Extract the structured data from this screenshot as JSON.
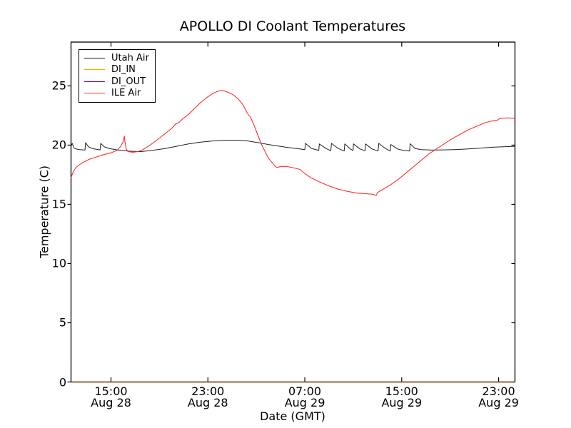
{
  "chart_data": {
    "type": "line",
    "title": "APOLLO DI Coolant Temperatures",
    "xlabel": "Date (GMT)",
    "ylabel": "Temperature (C)",
    "x_unit": "hours since Aug 28 00:00 GMT",
    "xlim": [
      11.7,
      48.35
    ],
    "ylim": [
      0,
      28.7
    ],
    "grid": false,
    "legend_position": "upper left",
    "axis_color": "#000000",
    "x_ticks": [
      {
        "hour": 15,
        "time": "15:00",
        "date": "Aug 28"
      },
      {
        "hour": 23,
        "time": "23:00",
        "date": "Aug 28"
      },
      {
        "hour": 31,
        "time": "07:00",
        "date": "Aug 29"
      },
      {
        "hour": 39,
        "time": "15:00",
        "date": "Aug 29"
      },
      {
        "hour": 47,
        "time": "23:00",
        "date": "Aug 29"
      }
    ],
    "y_ticks": [
      0,
      5,
      10,
      15,
      20,
      25
    ],
    "series": [
      {
        "name": "Utah Air",
        "color": "#1f1f1f",
        "width": 1,
        "points": [
          [
            11.7,
            19.9
          ],
          [
            11.8,
            20.15
          ],
          [
            11.95,
            19.75
          ],
          [
            12.1,
            19.68
          ],
          [
            12.4,
            19.62
          ],
          [
            12.85,
            19.58
          ],
          [
            12.9,
            20.2
          ],
          [
            13.15,
            19.85
          ],
          [
            13.5,
            19.7
          ],
          [
            14.1,
            19.6
          ],
          [
            14.15,
            20.15
          ],
          [
            14.45,
            19.85
          ],
          [
            14.9,
            19.7
          ],
          [
            15.5,
            19.6
          ],
          [
            16.4,
            19.5
          ],
          [
            17.4,
            19.45
          ],
          [
            18.4,
            19.55
          ],
          [
            19.4,
            19.7
          ],
          [
            20.4,
            19.9
          ],
          [
            21.4,
            20.1
          ],
          [
            22.4,
            20.25
          ],
          [
            23.4,
            20.35
          ],
          [
            24.4,
            20.42
          ],
          [
            25.4,
            20.42
          ],
          [
            26.3,
            20.35
          ],
          [
            27.2,
            20.2
          ],
          [
            28.0,
            20.05
          ],
          [
            28.8,
            19.92
          ],
          [
            29.6,
            19.8
          ],
          [
            30.4,
            19.7
          ],
          [
            31.0,
            19.62
          ],
          [
            31.05,
            20.15
          ],
          [
            31.55,
            19.72
          ],
          [
            32.15,
            19.55
          ],
          [
            32.2,
            20.1
          ],
          [
            32.75,
            19.72
          ],
          [
            33.15,
            19.52
          ],
          [
            33.2,
            20.15
          ],
          [
            33.75,
            19.72
          ],
          [
            34.25,
            19.5
          ],
          [
            34.3,
            20.1
          ],
          [
            34.75,
            19.68
          ],
          [
            34.98,
            19.55
          ],
          [
            35.02,
            20.1
          ],
          [
            35.55,
            19.68
          ],
          [
            35.98,
            19.52
          ],
          [
            36.02,
            20.1
          ],
          [
            36.55,
            19.68
          ],
          [
            37.05,
            19.5
          ],
          [
            37.1,
            20.15
          ],
          [
            37.65,
            19.72
          ],
          [
            38.05,
            19.5
          ],
          [
            38.1,
            20.05
          ],
          [
            38.65,
            19.68
          ],
          [
            39.15,
            19.55
          ],
          [
            39.65,
            19.5
          ],
          [
            39.7,
            20.12
          ],
          [
            40.1,
            19.72
          ],
          [
            40.6,
            19.62
          ],
          [
            41.5,
            19.58
          ],
          [
            42.5,
            19.6
          ],
          [
            43.5,
            19.63
          ],
          [
            44.5,
            19.68
          ],
          [
            45.5,
            19.75
          ],
          [
            46.5,
            19.82
          ],
          [
            47.4,
            19.86
          ],
          [
            48.35,
            19.9
          ]
        ]
      },
      {
        "name": "DI_IN",
        "color": "#ffa500",
        "width": 1.2,
        "points": [
          [
            11.7,
            0
          ],
          [
            48.35,
            0
          ]
        ]
      },
      {
        "name": "DI_OUT",
        "color": "#800080",
        "width": 1.2,
        "points": [
          [
            11.7,
            0
          ],
          [
            48.35,
            0
          ]
        ]
      },
      {
        "name": "ILE Air",
        "color": "#ff2f2f",
        "width": 1.1,
        "points": [
          [
            11.7,
            17.25
          ],
          [
            11.9,
            17.8
          ],
          [
            12.1,
            18.1
          ],
          [
            12.4,
            18.35
          ],
          [
            12.8,
            18.6
          ],
          [
            13.2,
            18.8
          ],
          [
            13.8,
            19.0
          ],
          [
            14.4,
            19.2
          ],
          [
            15.0,
            19.35
          ],
          [
            15.5,
            19.55
          ],
          [
            15.8,
            19.9
          ],
          [
            16.0,
            20.3
          ],
          [
            16.1,
            20.75
          ],
          [
            16.15,
            20.3
          ],
          [
            16.25,
            19.7
          ],
          [
            16.4,
            19.45
          ],
          [
            16.8,
            19.4
          ],
          [
            17.2,
            19.45
          ],
          [
            17.6,
            19.6
          ],
          [
            18.0,
            19.85
          ],
          [
            18.5,
            20.2
          ],
          [
            19.0,
            20.6
          ],
          [
            19.5,
            21.0
          ],
          [
            20.0,
            21.4
          ],
          [
            20.3,
            21.75
          ],
          [
            20.6,
            21.9
          ],
          [
            20.9,
            22.2
          ],
          [
            21.4,
            22.6
          ],
          [
            21.9,
            23.1
          ],
          [
            22.4,
            23.6
          ],
          [
            22.9,
            24.0
          ],
          [
            23.3,
            24.3
          ],
          [
            23.7,
            24.5
          ],
          [
            24.0,
            24.6
          ],
          [
            24.3,
            24.6
          ],
          [
            24.7,
            24.45
          ],
          [
            25.1,
            24.25
          ],
          [
            25.5,
            23.9
          ],
          [
            25.9,
            23.4
          ],
          [
            26.2,
            22.8
          ],
          [
            26.35,
            22.55
          ],
          [
            26.5,
            22.4
          ],
          [
            26.8,
            21.7
          ],
          [
            27.1,
            20.9
          ],
          [
            27.4,
            20.1
          ],
          [
            27.7,
            19.5
          ],
          [
            28.0,
            18.9
          ],
          [
            28.4,
            18.4
          ],
          [
            28.7,
            18.1
          ],
          [
            29.0,
            18.2
          ],
          [
            29.5,
            18.2
          ],
          [
            30.0,
            18.1
          ],
          [
            30.6,
            17.95
          ],
          [
            31.0,
            17.6
          ],
          [
            31.5,
            17.25
          ],
          [
            32.2,
            16.9
          ],
          [
            33.0,
            16.55
          ],
          [
            33.7,
            16.3
          ],
          [
            34.5,
            16.1
          ],
          [
            35.3,
            15.95
          ],
          [
            36.0,
            15.9
          ],
          [
            36.6,
            15.85
          ],
          [
            36.9,
            15.75
          ],
          [
            37.0,
            16.0
          ],
          [
            37.5,
            16.3
          ],
          [
            38.0,
            16.6
          ],
          [
            38.7,
            17.1
          ],
          [
            39.3,
            17.6
          ],
          [
            40.0,
            18.2
          ],
          [
            40.7,
            18.8
          ],
          [
            41.3,
            19.3
          ],
          [
            41.9,
            19.7
          ],
          [
            42.5,
            20.1
          ],
          [
            43.1,
            20.5
          ],
          [
            43.8,
            20.9
          ],
          [
            44.5,
            21.3
          ],
          [
            45.2,
            21.6
          ],
          [
            45.9,
            21.9
          ],
          [
            46.5,
            22.05
          ],
          [
            46.9,
            22.1
          ],
          [
            47.1,
            22.25
          ],
          [
            47.7,
            22.3
          ],
          [
            48.35,
            22.25
          ]
        ]
      }
    ]
  }
}
